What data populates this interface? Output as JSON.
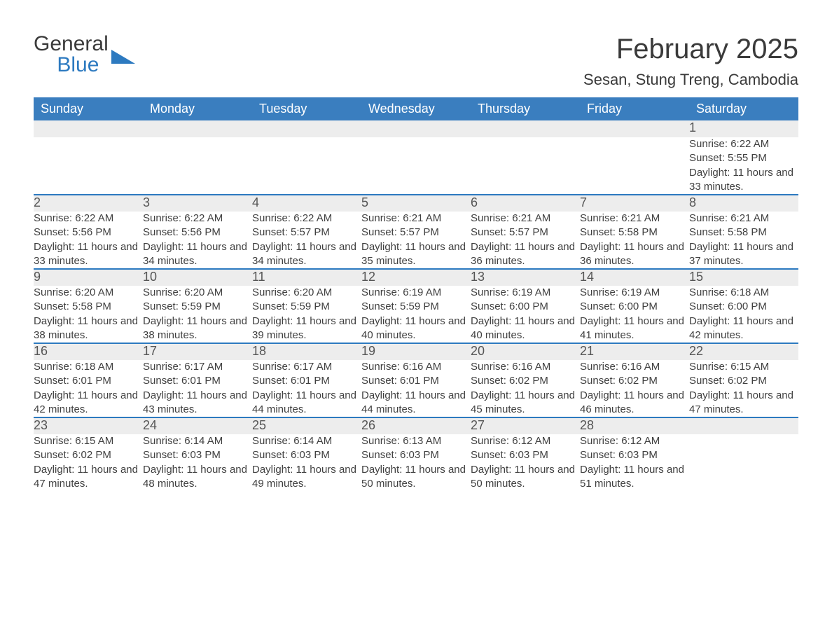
{
  "brand": {
    "word1": "General",
    "word2": "Blue",
    "accent_color": "#2d7ac0"
  },
  "title": "February 2025",
  "subtitle": "Sesan, Stung Treng, Cambodia",
  "colors": {
    "header_bg": "#3a7ebf",
    "header_text": "#ffffff",
    "band_bg": "#ededed",
    "rule": "#2d7ac0",
    "page_bg": "#ffffff",
    "body_text": "#2f2f2f"
  },
  "columns": [
    "Sunday",
    "Monday",
    "Tuesday",
    "Wednesday",
    "Thursday",
    "Friday",
    "Saturday"
  ],
  "weeks": [
    [
      null,
      null,
      null,
      null,
      null,
      null,
      {
        "n": "1",
        "sunrise": "Sunrise: 6:22 AM",
        "sunset": "Sunset: 5:55 PM",
        "day": "Daylight: 11 hours and 33 minutes."
      }
    ],
    [
      {
        "n": "2",
        "sunrise": "Sunrise: 6:22 AM",
        "sunset": "Sunset: 5:56 PM",
        "day": "Daylight: 11 hours and 33 minutes."
      },
      {
        "n": "3",
        "sunrise": "Sunrise: 6:22 AM",
        "sunset": "Sunset: 5:56 PM",
        "day": "Daylight: 11 hours and 34 minutes."
      },
      {
        "n": "4",
        "sunrise": "Sunrise: 6:22 AM",
        "sunset": "Sunset: 5:57 PM",
        "day": "Daylight: 11 hours and 34 minutes."
      },
      {
        "n": "5",
        "sunrise": "Sunrise: 6:21 AM",
        "sunset": "Sunset: 5:57 PM",
        "day": "Daylight: 11 hours and 35 minutes."
      },
      {
        "n": "6",
        "sunrise": "Sunrise: 6:21 AM",
        "sunset": "Sunset: 5:57 PM",
        "day": "Daylight: 11 hours and 36 minutes."
      },
      {
        "n": "7",
        "sunrise": "Sunrise: 6:21 AM",
        "sunset": "Sunset: 5:58 PM",
        "day": "Daylight: 11 hours and 36 minutes."
      },
      {
        "n": "8",
        "sunrise": "Sunrise: 6:21 AM",
        "sunset": "Sunset: 5:58 PM",
        "day": "Daylight: 11 hours and 37 minutes."
      }
    ],
    [
      {
        "n": "9",
        "sunrise": "Sunrise: 6:20 AM",
        "sunset": "Sunset: 5:58 PM",
        "day": "Daylight: 11 hours and 38 minutes."
      },
      {
        "n": "10",
        "sunrise": "Sunrise: 6:20 AM",
        "sunset": "Sunset: 5:59 PM",
        "day": "Daylight: 11 hours and 38 minutes."
      },
      {
        "n": "11",
        "sunrise": "Sunrise: 6:20 AM",
        "sunset": "Sunset: 5:59 PM",
        "day": "Daylight: 11 hours and 39 minutes."
      },
      {
        "n": "12",
        "sunrise": "Sunrise: 6:19 AM",
        "sunset": "Sunset: 5:59 PM",
        "day": "Daylight: 11 hours and 40 minutes."
      },
      {
        "n": "13",
        "sunrise": "Sunrise: 6:19 AM",
        "sunset": "Sunset: 6:00 PM",
        "day": "Daylight: 11 hours and 40 minutes."
      },
      {
        "n": "14",
        "sunrise": "Sunrise: 6:19 AM",
        "sunset": "Sunset: 6:00 PM",
        "day": "Daylight: 11 hours and 41 minutes."
      },
      {
        "n": "15",
        "sunrise": "Sunrise: 6:18 AM",
        "sunset": "Sunset: 6:00 PM",
        "day": "Daylight: 11 hours and 42 minutes."
      }
    ],
    [
      {
        "n": "16",
        "sunrise": "Sunrise: 6:18 AM",
        "sunset": "Sunset: 6:01 PM",
        "day": "Daylight: 11 hours and 42 minutes."
      },
      {
        "n": "17",
        "sunrise": "Sunrise: 6:17 AM",
        "sunset": "Sunset: 6:01 PM",
        "day": "Daylight: 11 hours and 43 minutes."
      },
      {
        "n": "18",
        "sunrise": "Sunrise: 6:17 AM",
        "sunset": "Sunset: 6:01 PM",
        "day": "Daylight: 11 hours and 44 minutes."
      },
      {
        "n": "19",
        "sunrise": "Sunrise: 6:16 AM",
        "sunset": "Sunset: 6:01 PM",
        "day": "Daylight: 11 hours and 44 minutes."
      },
      {
        "n": "20",
        "sunrise": "Sunrise: 6:16 AM",
        "sunset": "Sunset: 6:02 PM",
        "day": "Daylight: 11 hours and 45 minutes."
      },
      {
        "n": "21",
        "sunrise": "Sunrise: 6:16 AM",
        "sunset": "Sunset: 6:02 PM",
        "day": "Daylight: 11 hours and 46 minutes."
      },
      {
        "n": "22",
        "sunrise": "Sunrise: 6:15 AM",
        "sunset": "Sunset: 6:02 PM",
        "day": "Daylight: 11 hours and 47 minutes."
      }
    ],
    [
      {
        "n": "23",
        "sunrise": "Sunrise: 6:15 AM",
        "sunset": "Sunset: 6:02 PM",
        "day": "Daylight: 11 hours and 47 minutes."
      },
      {
        "n": "24",
        "sunrise": "Sunrise: 6:14 AM",
        "sunset": "Sunset: 6:03 PM",
        "day": "Daylight: 11 hours and 48 minutes."
      },
      {
        "n": "25",
        "sunrise": "Sunrise: 6:14 AM",
        "sunset": "Sunset: 6:03 PM",
        "day": "Daylight: 11 hours and 49 minutes."
      },
      {
        "n": "26",
        "sunrise": "Sunrise: 6:13 AM",
        "sunset": "Sunset: 6:03 PM",
        "day": "Daylight: 11 hours and 50 minutes."
      },
      {
        "n": "27",
        "sunrise": "Sunrise: 6:12 AM",
        "sunset": "Sunset: 6:03 PM",
        "day": "Daylight: 11 hours and 50 minutes."
      },
      {
        "n": "28",
        "sunrise": "Sunrise: 6:12 AM",
        "sunset": "Sunset: 6:03 PM",
        "day": "Daylight: 11 hours and 51 minutes."
      },
      null
    ]
  ]
}
